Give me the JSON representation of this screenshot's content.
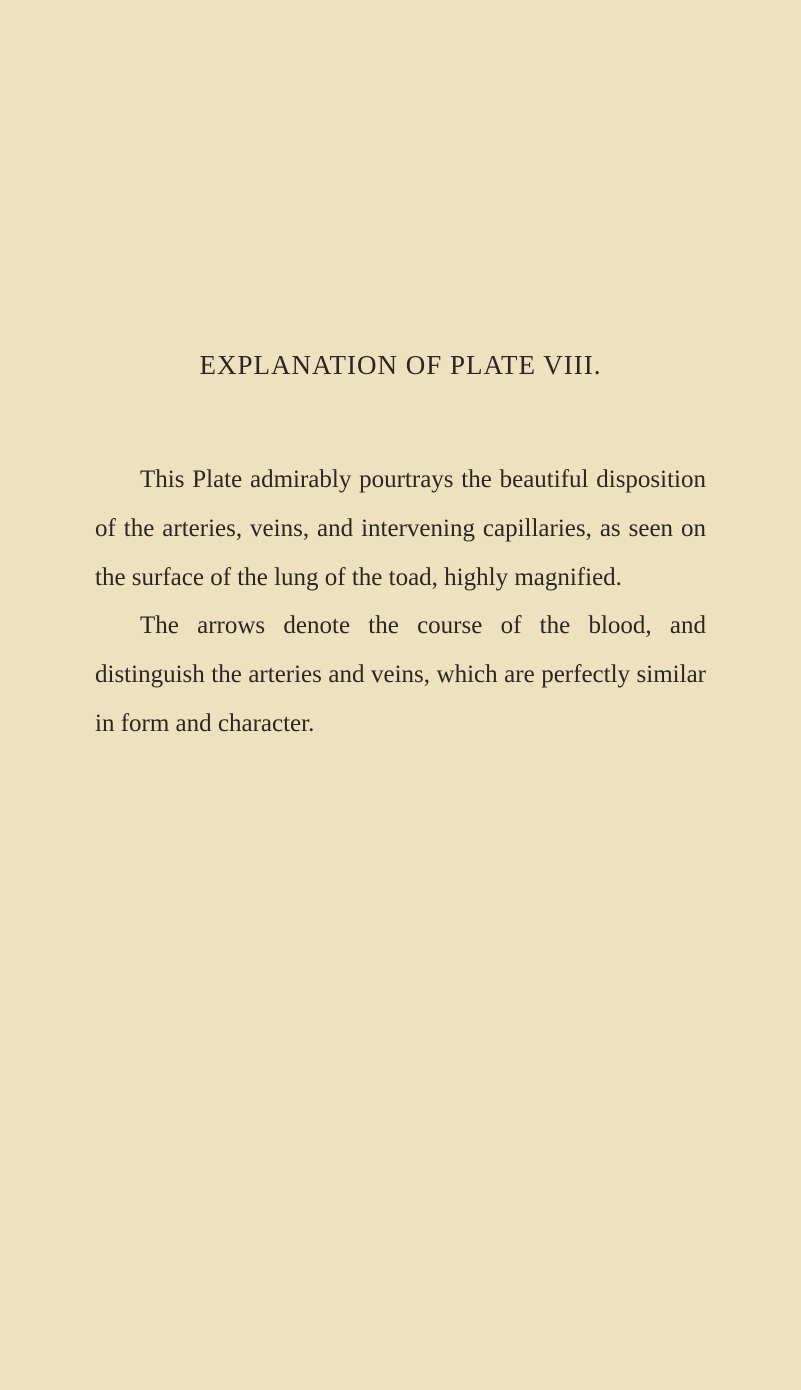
{
  "page": {
    "background_color": "#ede2c0",
    "text_color": "#2a2620",
    "font_family": "Georgia, 'Times New Roman', serif",
    "title": "EXPLANATION OF PLATE VIII.",
    "title_fontsize": 27,
    "body_fontsize": 25,
    "line_height": 1.95,
    "paragraphs": [
      "This Plate admirably pourtrays the beautiful disposition of the arteries, veins, and intervening capillaries, as seen on the surface of the lung of the toad, highly magnified.",
      "The arrows denote the course of the blood, and distinguish the arteries and veins, which are perfectly similar in form and character."
    ]
  }
}
